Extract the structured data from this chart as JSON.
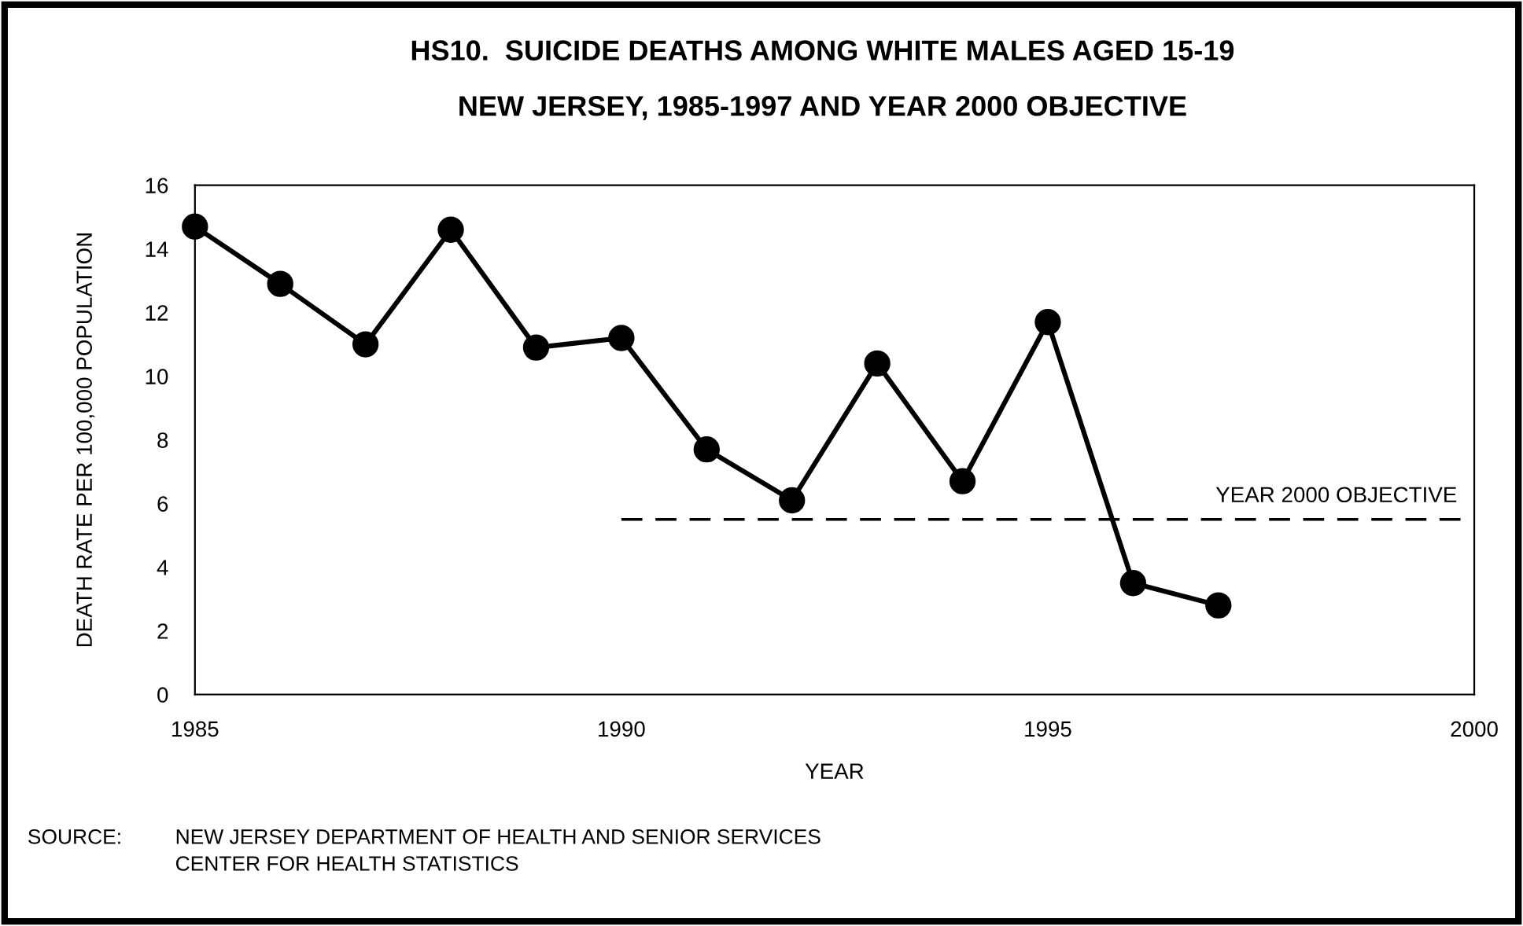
{
  "chart_data": {
    "type": "line",
    "title": "HS10.  SUICIDE DEATHS AMONG WHITE MALES AGED 15-19",
    "subtitle": "NEW JERSEY, 1985-1997 AND YEAR 2000 OBJECTIVE",
    "xlabel": "YEAR",
    "ylabel": "DEATH RATE PER 100,000 POPULATION",
    "x": [
      1985,
      1986,
      1987,
      1988,
      1989,
      1990,
      1991,
      1992,
      1993,
      1994,
      1995,
      1996,
      1997
    ],
    "series": [
      {
        "color": "#000000",
        "values": [
          14.7,
          12.9,
          11.0,
          14.6,
          10.9,
          11.2,
          7.7,
          6.1,
          10.4,
          6.7,
          11.7,
          3.5,
          2.8
        ]
      },
      {
        "name": "YEAR 2000 OBJECTIVE",
        "x": [
          1990,
          2000
        ],
        "values": [
          5.5,
          5.5
        ],
        "color": "#000000",
        "line_style": "dashed",
        "marker": "none"
      }
    ],
    "marker": "circle",
    "line_style": "solid",
    "xlim": [
      1985,
      2000
    ],
    "xticks": [
      1985,
      1990,
      1995,
      2000
    ],
    "ylim": [
      0,
      16
    ],
    "yticks": [
      0,
      2,
      4,
      6,
      8,
      10,
      12,
      14,
      16
    ],
    "grid": false,
    "annotations": [
      "SOURCE:",
      "NEW JERSEY DEPARTMENT OF HEALTH AND SENIOR SERVICES\nCENTER FOR HEALTH STATISTICS"
    ]
  }
}
